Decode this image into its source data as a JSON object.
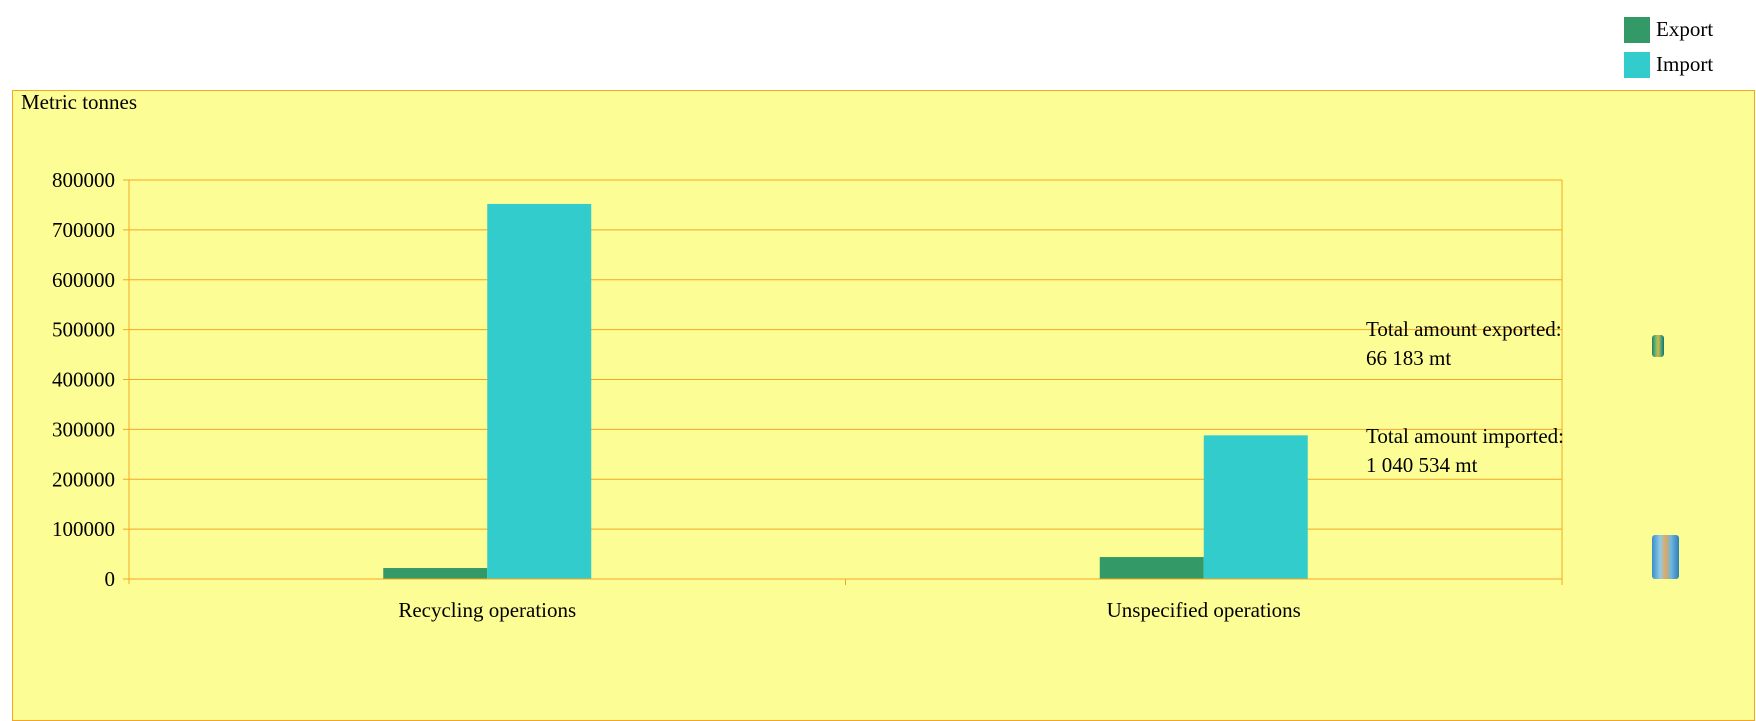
{
  "legend": {
    "items": [
      {
        "label": "Export",
        "color": "#339966"
      },
      {
        "label": "Import",
        "color": "#33cccc"
      }
    ]
  },
  "chart_data": {
    "type": "bar",
    "title": "",
    "xlabel": "",
    "ylabel": "Metric tonnes",
    "categories": [
      "Recycling operations",
      "Unspecified operations"
    ],
    "series": [
      {
        "name": "Export",
        "color": "#339966",
        "values": [
          22000,
          44000
        ]
      },
      {
        "name": "Import",
        "color": "#33cccc",
        "values": [
          752000,
          288000
        ]
      }
    ],
    "ylim": [
      0,
      800000
    ],
    "yticks": [
      "0",
      "100000",
      "200000",
      "300000",
      "400000",
      "500000",
      "600000",
      "700000",
      "800000"
    ],
    "grid": true,
    "gridline_color": "#f5a623",
    "background_color": "#fdfd96",
    "legend_position": "top-right"
  },
  "totals": {
    "exported_label": "Total amount exported:",
    "exported_value": "66 183 mt",
    "imported_label": "Total amount imported:",
    "imported_value": "1 040 534 mt"
  }
}
